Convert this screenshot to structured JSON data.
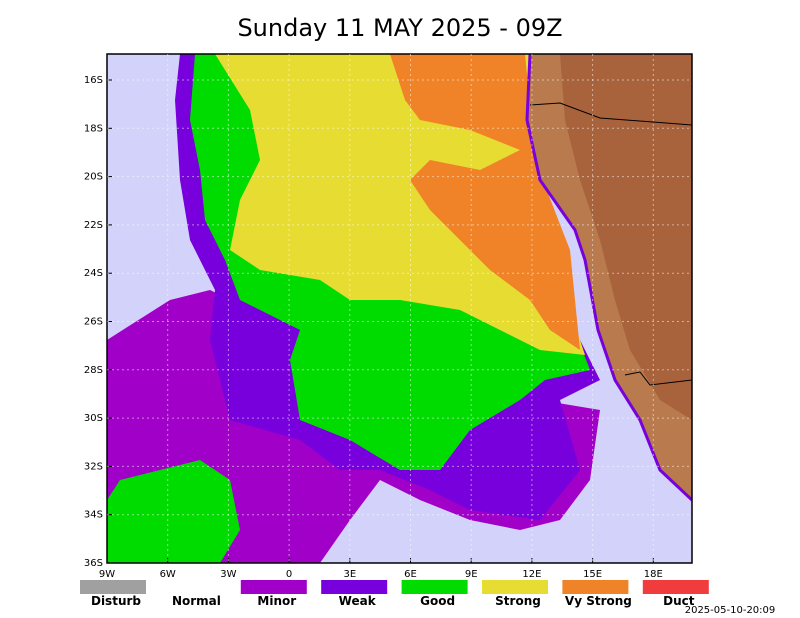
{
  "title": "Sunday 11 MAY 2025 - 09Z",
  "lat_labels": [
    "16S",
    "18S",
    "20S",
    "22S",
    "24S",
    "26S",
    "28S",
    "30S",
    "32S",
    "34S",
    "36S"
  ],
  "lon_labels": [
    "9W",
    "6W",
    "3W",
    "0",
    "3E",
    "6E",
    "9E",
    "12E",
    "15E",
    "18E"
  ],
  "legend": [
    {
      "name": "Disturb",
      "color": "#a0a0a0"
    },
    {
      "name": "Normal",
      "color": "#ffffff"
    },
    {
      "name": "Minor",
      "color": "#a000c8"
    },
    {
      "name": "Weak",
      "color": "#7800dc"
    },
    {
      "name": "Good",
      "color": "#00dc00"
    },
    {
      "name": "Strong",
      "color": "#e6dc32"
    },
    {
      "name": "Vy Strong",
      "color": "#f08228"
    },
    {
      "name": "Duct",
      "color": "#f03c3c"
    }
  ],
  "timestamp": "2025-05-10-20:09"
}
